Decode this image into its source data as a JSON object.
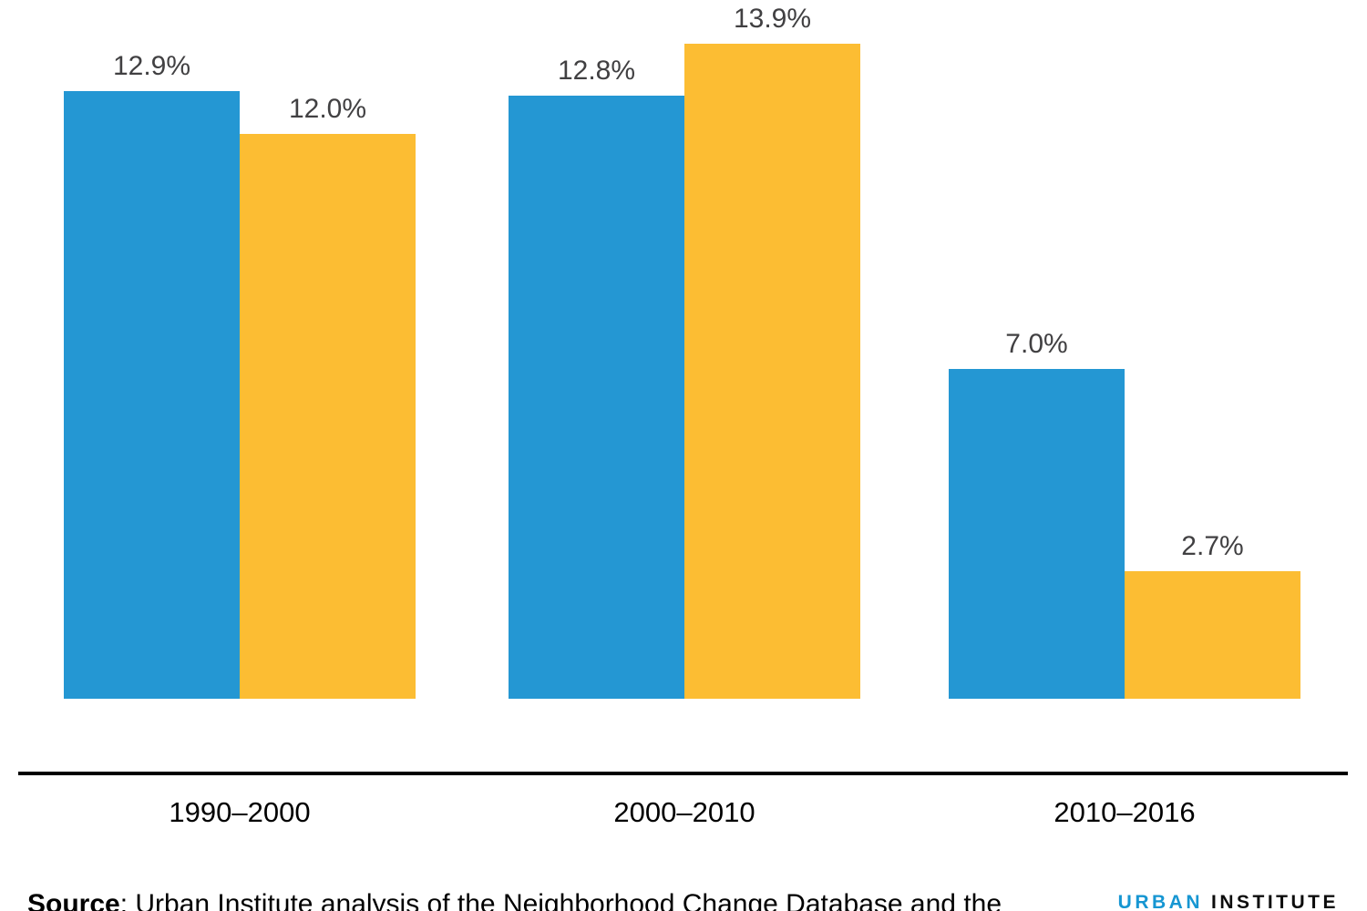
{
  "chart_data": {
    "type": "bar",
    "title": "",
    "xlabel": "",
    "ylabel": "",
    "categories": [
      "1990–2000",
      "2000–2010",
      "2010–2016"
    ],
    "series": [
      {
        "name": "blue",
        "color": "#2497d3",
        "values": [
          12.9,
          12.8,
          7.0
        ],
        "labels": [
          "12.9%",
          "12.8%",
          "7.0%"
        ]
      },
      {
        "name": "yellow",
        "color": "#fcbd33",
        "values": [
          12.0,
          13.9,
          2.7
        ],
        "labels": [
          "12.0%",
          "13.9%",
          "2.7%"
        ]
      }
    ],
    "ylim": [
      0,
      15
    ],
    "y_axis_visible": false,
    "grid": false,
    "legend": "none",
    "value_label_color": "#414042",
    "axis_line_color": "#000000"
  },
  "footer": {
    "source_bold": "Source",
    "source_rest": ": Urban Institute analysis of the Neighborhood Change Database and the",
    "logo": {
      "word1": "URBAN",
      "word2": "INSTITUTE",
      "word1_color": "#1696d2",
      "word2_color": "#0d0d0d"
    }
  }
}
